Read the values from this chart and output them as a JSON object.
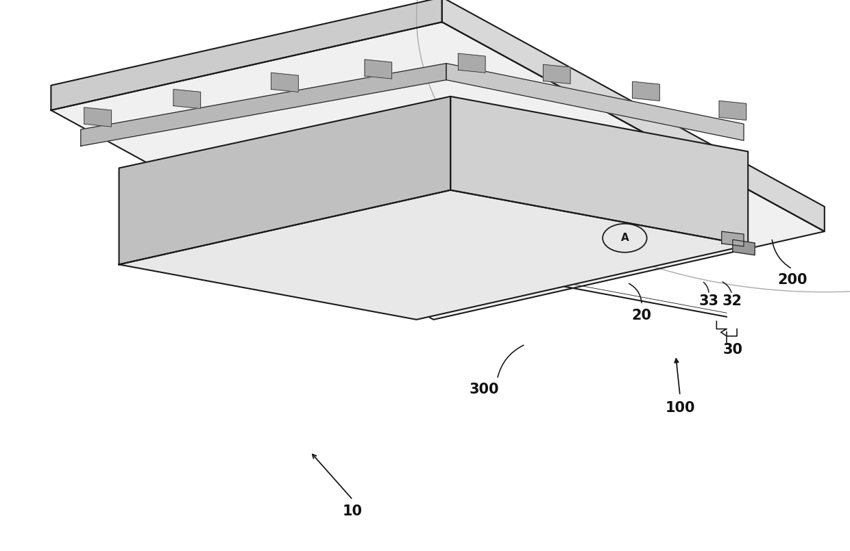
{
  "bg_color": "#ffffff",
  "line_color": "#1a1a1a",
  "figure_width": 12.4,
  "figure_height": 8.05,
  "dpi": 100
}
